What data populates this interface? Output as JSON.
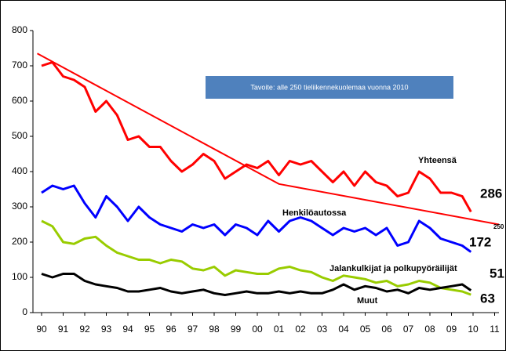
{
  "chart_data": {
    "type": "line",
    "annotation": "Tavoite: alle 250 tieliikennekuolemaa vuonna 2010",
    "x": [
      1990,
      1990.5,
      1991,
      1991.5,
      1992,
      1992.5,
      1993,
      1993.5,
      1994,
      1994.5,
      1995,
      1995.5,
      1996,
      1996.5,
      1997,
      1997.5,
      1998,
      1998.5,
      1999,
      1999.5,
      2000,
      2000.5,
      2001,
      2001.5,
      2002,
      2002.5,
      2003,
      2003.5,
      2004,
      2004.5,
      2005,
      2005.5,
      2006,
      2006.5,
      2007,
      2007.5,
      2008,
      2008.5,
      2009,
      2009.5,
      2009.9
    ],
    "series": [
      {
        "name": "Yhteensä",
        "color": "#ff0000",
        "values": [
          700,
          710,
          670,
          660,
          640,
          570,
          600,
          560,
          490,
          500,
          470,
          470,
          430,
          400,
          420,
          450,
          430,
          380,
          400,
          420,
          410,
          430,
          390,
          430,
          420,
          430,
          400,
          370,
          400,
          360,
          400,
          370,
          360,
          330,
          340,
          400,
          380,
          340,
          340,
          330,
          286
        ]
      },
      {
        "name": "Henkilöautossa",
        "color": "#0000ff",
        "values": [
          340,
          360,
          350,
          360,
          310,
          270,
          330,
          300,
          260,
          300,
          270,
          250,
          240,
          230,
          250,
          240,
          250,
          220,
          250,
          240,
          220,
          260,
          230,
          260,
          270,
          260,
          240,
          220,
          240,
          230,
          240,
          220,
          240,
          190,
          200,
          260,
          240,
          210,
          200,
          190,
          172
        ]
      },
      {
        "name": "Jalankulkijat ja polkupyöräilijät",
        "color": "#99cc00",
        "values": [
          260,
          245,
          200,
          195,
          210,
          215,
          190,
          170,
          160,
          150,
          150,
          140,
          150,
          145,
          125,
          120,
          130,
          105,
          120,
          115,
          110,
          110,
          125,
          130,
          120,
          115,
          100,
          90,
          105,
          100,
          95,
          85,
          90,
          75,
          80,
          90,
          85,
          70,
          65,
          60,
          51
        ]
      },
      {
        "name": "Muut",
        "color": "#000000",
        "values": [
          110,
          100,
          110,
          110,
          90,
          80,
          75,
          70,
          60,
          60,
          65,
          70,
          60,
          55,
          60,
          65,
          55,
          50,
          55,
          60,
          55,
          55,
          60,
          55,
          60,
          55,
          55,
          65,
          80,
          65,
          75,
          70,
          60,
          65,
          55,
          70,
          65,
          70,
          75,
          80,
          63
        ]
      }
    ],
    "target_line": {
      "color": "#ff0000",
      "x": [
        1989.8,
        2001,
        2011.2
      ],
      "values": [
        735,
        365,
        250
      ]
    },
    "xlim": [
      1989.6,
      2011.2
    ],
    "xticks": [
      {
        "value": 1990,
        "label": "90"
      },
      {
        "value": 1991,
        "label": "91"
      },
      {
        "value": 1992,
        "label": "92"
      },
      {
        "value": 1993,
        "label": "93"
      },
      {
        "value": 1994,
        "label": "94"
      },
      {
        "value": 1995,
        "label": "95"
      },
      {
        "value": 1996,
        "label": "96"
      },
      {
        "value": 1997,
        "label": "97"
      },
      {
        "value": 1998,
        "label": "98"
      },
      {
        "value": 1999,
        "label": "99"
      },
      {
        "value": 2000,
        "label": "00"
      },
      {
        "value": 2001,
        "label": "01"
      },
      {
        "value": 2002,
        "label": "02"
      },
      {
        "value": 2003,
        "label": "03"
      },
      {
        "value": 2004,
        "label": "04"
      },
      {
        "value": 2005,
        "label": "05"
      },
      {
        "value": 2006,
        "label": "06"
      },
      {
        "value": 2007,
        "label": "07"
      },
      {
        "value": 2008,
        "label": "08"
      },
      {
        "value": 2009,
        "label": "09"
      },
      {
        "value": 2010,
        "label": "10"
      },
      {
        "value": 2011,
        "label": "11"
      }
    ],
    "ylim": [
      0,
      800
    ],
    "yticks": [
      0,
      100,
      200,
      300,
      400,
      500,
      600,
      700,
      800
    ],
    "grid": false
  }
}
